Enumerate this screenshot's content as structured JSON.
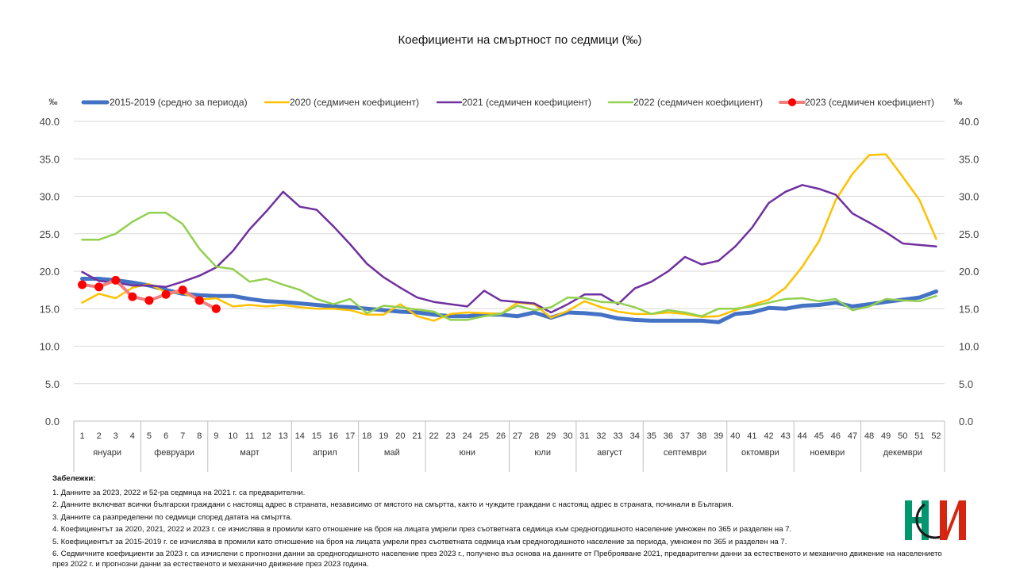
{
  "chart_data": {
    "type": "line",
    "title": "Коефициенти на смъртност по седмици (‰)",
    "ylabel_left": "‰",
    "ylabel_right": "‰",
    "ylim": [
      0,
      40
    ],
    "yticks": [
      "0.0",
      "5.0",
      "10.0",
      "15.0",
      "20.0",
      "25.0",
      "30.0",
      "35.0",
      "40.0"
    ],
    "grid": true,
    "legend_position": "top",
    "weeks": [
      1,
      2,
      3,
      4,
      5,
      6,
      7,
      8,
      9,
      10,
      11,
      12,
      13,
      14,
      15,
      16,
      17,
      18,
      19,
      20,
      21,
      22,
      23,
      24,
      25,
      26,
      27,
      28,
      29,
      30,
      31,
      32,
      33,
      34,
      35,
      36,
      37,
      38,
      39,
      40,
      41,
      42,
      43,
      44,
      45,
      46,
      47,
      48,
      49,
      50,
      51,
      52
    ],
    "months": [
      {
        "name": "януари",
        "start": 1,
        "end": 4
      },
      {
        "name": "февруари",
        "start": 5,
        "end": 8
      },
      {
        "name": "март",
        "start": 9,
        "end": 13
      },
      {
        "name": "април",
        "start": 14,
        "end": 17
      },
      {
        "name": "май",
        "start": 18,
        "end": 21
      },
      {
        "name": "юни",
        "start": 22,
        "end": 26
      },
      {
        "name": "юли",
        "start": 27,
        "end": 30
      },
      {
        "name": "август",
        "start": 31,
        "end": 34
      },
      {
        "name": "септември",
        "start": 35,
        "end": 39
      },
      {
        "name": "октомври",
        "start": 40,
        "end": 43
      },
      {
        "name": "ноември",
        "start": 44,
        "end": 47
      },
      {
        "name": "декември",
        "start": 48,
        "end": 52
      }
    ],
    "series": [
      {
        "name": "2015-2019 (средно  за периода)",
        "color": "#4472C4",
        "width": 5,
        "markers": false,
        "values": [
          19.0,
          19.0,
          18.8,
          18.5,
          18.1,
          17.5,
          17.0,
          16.8,
          16.7,
          16.7,
          16.3,
          16.0,
          15.9,
          15.7,
          15.5,
          15.3,
          15.2,
          15.0,
          14.8,
          14.6,
          14.5,
          14.2,
          14.0,
          14.0,
          14.2,
          14.2,
          14.0,
          14.5,
          13.8,
          14.5,
          14.4,
          14.2,
          13.7,
          13.5,
          13.4,
          13.4,
          13.4,
          13.4,
          13.2,
          14.3,
          14.5,
          15.1,
          15.0,
          15.4,
          15.5,
          15.8,
          15.3,
          15.6,
          15.9,
          16.2,
          16.5,
          17.3
        ]
      },
      {
        "name": "2020 (седмичен коефициент)",
        "color": "#FFC000",
        "width": 2.5,
        "markers": false,
        "values": [
          15.8,
          17.0,
          16.4,
          17.8,
          18.3,
          17.2,
          17.1,
          16.2,
          16.4,
          15.3,
          15.5,
          15.3,
          15.5,
          15.2,
          15.0,
          15.0,
          14.8,
          14.2,
          14.2,
          15.6,
          14.0,
          13.4,
          14.3,
          14.5,
          14.4,
          14.3,
          15.8,
          15.6,
          13.8,
          14.7,
          16.0,
          15.2,
          14.6,
          14.3,
          14.3,
          14.5,
          14.3,
          13.9,
          14.0,
          14.8,
          15.5,
          16.2,
          17.8,
          20.6,
          24.0,
          29.5,
          33.0,
          35.5,
          35.6,
          32.6,
          29.5,
          24.3
        ]
      },
      {
        "name": "2021 (седмичен коефициент)",
        "color": "#7030A0",
        "width": 2.5,
        "markers": false,
        "values": [
          19.9,
          18.7,
          18.5,
          18.1,
          18.1,
          17.9,
          18.6,
          19.4,
          20.5,
          22.7,
          25.6,
          28.0,
          30.6,
          28.6,
          28.2,
          26.0,
          23.6,
          21.0,
          19.2,
          17.8,
          16.5,
          15.9,
          15.6,
          15.3,
          17.4,
          16.1,
          15.9,
          15.7,
          14.5,
          15.6,
          16.9,
          16.9,
          15.6,
          17.7,
          18.6,
          20.0,
          21.9,
          20.9,
          21.4,
          23.3,
          25.8,
          29.1,
          30.6,
          31.5,
          31.0,
          30.2,
          27.7,
          26.5,
          25.2,
          23.7,
          23.5,
          23.3
        ]
      },
      {
        "name": "2022 (седмичен коефициент)",
        "color": "#92D050",
        "width": 2.5,
        "markers": false,
        "values": [
          24.2,
          24.2,
          25.0,
          26.6,
          27.8,
          27.8,
          26.3,
          23.0,
          20.6,
          20.3,
          18.6,
          19.0,
          18.2,
          17.5,
          16.3,
          15.6,
          16.3,
          14.4,
          15.4,
          15.2,
          14.9,
          14.6,
          13.5,
          13.5,
          14.0,
          14.3,
          15.4,
          14.8,
          15.2,
          16.5,
          16.4,
          15.9,
          15.8,
          15.2,
          14.3,
          14.8,
          14.5,
          14.0,
          15.0,
          15.0,
          15.3,
          15.8,
          16.3,
          16.4,
          16.0,
          16.3,
          14.8,
          15.3,
          16.3,
          16.1,
          16.0,
          16.7
        ]
      },
      {
        "name": "2023 (седмичен коефициент)",
        "color": "#FF0000",
        "line_color": "#F08080",
        "width": 4,
        "markers": true,
        "values": [
          18.2,
          17.9,
          18.8,
          16.6,
          16.1,
          16.9,
          17.5,
          16.1,
          15.0
        ]
      }
    ]
  },
  "notes": {
    "header": "Забележки:",
    "items": [
      "1. Данните за 2023, 2022 и 52-ра седмица на 2021 г. са предварителни.",
      "2. Данните включват всички български граждани с настоящ адрес в страната, независимо от мястото на смъртта, както и чуждите граждани с настоящ адрес в страната, починали в България.",
      "3. Данните са разпределени по седмици според  датата на смъртта.",
      "4. Коефициентът за 2020, 2021, 2022 и 2023 г. се изчислява в промили като отношение на броя на лицата умрели през съответната седмица към средногодишното население умножен по 365 и разделен на 7.",
      "5. Коефициентът за 2015-2019 г. се изчислява в промили като отношение на броя на лицата умрели през съответната седмица към средногодишното население за периода, умножен по 365 и разделен на 7.",
      "6. Седмичните коефициенти за 2023 г. са изчислени с прогнозни данни за средногодишното население през 2023 г., получено въз основа на данните от Преброяване 2021, предварителни данни за естественото и механично движение на населението през 2022 г. и прогнозни данни за естественото и механично движение през 2023 година."
    ]
  },
  "logo": {
    "name": "nsi-logo-icon",
    "colors": [
      "#00966E",
      "#D62612",
      "#1a1a1a"
    ]
  }
}
